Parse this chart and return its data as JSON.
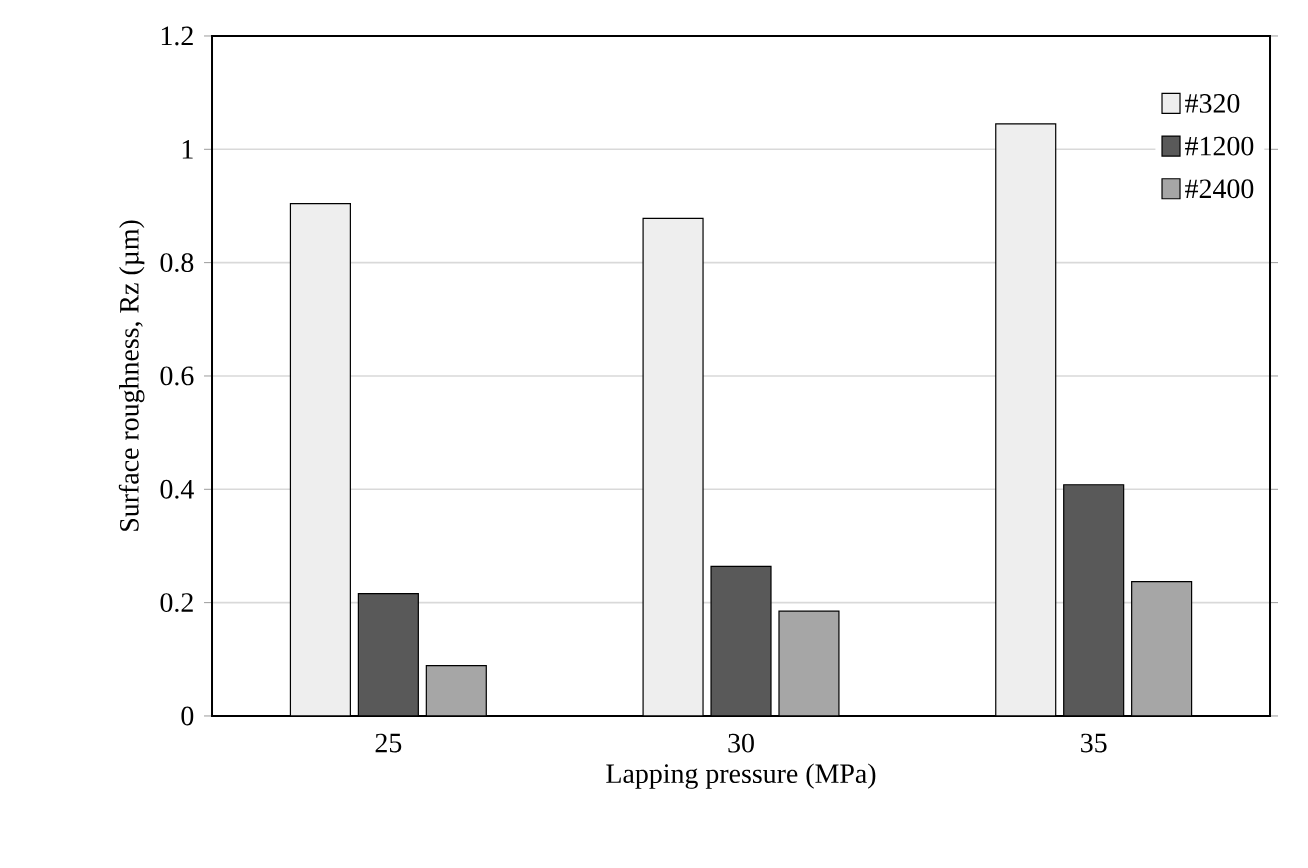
{
  "chart_data": {
    "type": "bar",
    "xlabel": "Lapping pressure (MPa)",
    "ylabel": "Surface roughness, Rz (µm)",
    "categories": [
      "25",
      "30",
      "35"
    ],
    "series": [
      {
        "name": "#320",
        "color": "#eeeeee",
        "values": [
          0.904,
          0.878,
          1.045
        ]
      },
      {
        "name": "#1200",
        "color": "#595959",
        "values": [
          0.216,
          0.264,
          0.408
        ]
      },
      {
        "name": "#2400",
        "color": "#a6a6a6",
        "values": [
          0.089,
          0.185,
          0.237
        ]
      }
    ],
    "ylim": [
      0,
      1.2
    ],
    "yticks": [
      0,
      0.2,
      0.4,
      0.6,
      0.8,
      1,
      1.2
    ],
    "grid": "y",
    "legend": "top right"
  }
}
